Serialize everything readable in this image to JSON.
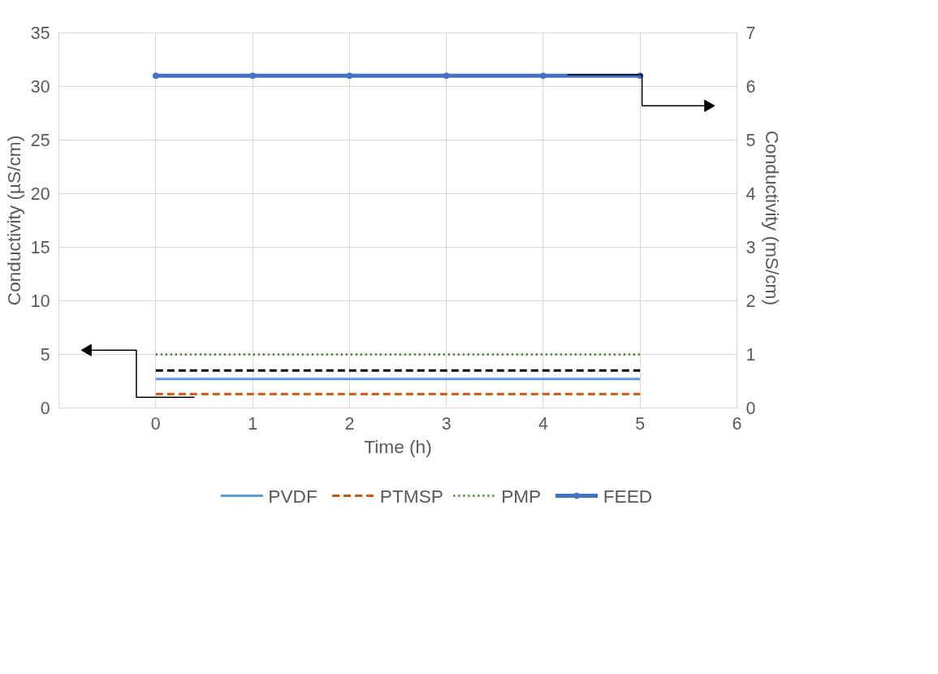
{
  "chart_data": {
    "type": "line",
    "xlabel": "Time (h)",
    "ylabel": "Conductivity (µS/cm)",
    "y2label": "Conductivity  (mS/cm)",
    "x": [
      0,
      1,
      2,
      3,
      4,
      5
    ],
    "xlim": [
      -1,
      6
    ],
    "xticks": [
      0,
      1,
      2,
      3,
      4,
      5,
      6
    ],
    "ylim": [
      0,
      35
    ],
    "yticks": [
      0,
      5,
      10,
      15,
      20,
      25,
      30,
      35
    ],
    "y2lim": [
      0,
      7
    ],
    "y2ticks": [
      0,
      1,
      2,
      3,
      4,
      5,
      6,
      7
    ],
    "grid": true,
    "legend": "bottom",
    "series": [
      {
        "name": "PVDF",
        "color": "#5b9bd5",
        "line_style": "solid",
        "values": [
          2.7,
          2.7,
          2.7,
          2.7,
          2.7,
          2.7
        ]
      },
      {
        "name": "PTMSP",
        "color": "#c55a11",
        "line_style": "dashed",
        "values": [
          1.3,
          1.3,
          1.3,
          1.3,
          1.3,
          1.3
        ]
      },
      {
        "name": "PMP",
        "color": "#548235",
        "line_style": "dotted",
        "values": [
          5,
          5,
          5,
          5,
          5,
          5
        ]
      },
      {
        "color": "#000000",
        "line_style": "dashed",
        "values": [
          3.5,
          3.5,
          3.5,
          3.5,
          3.5,
          3.5
        ]
      },
      {
        "name": "FEED",
        "color": "#4472c4",
        "line_style": "solid",
        "marker": "circle",
        "axis": "y2",
        "values": [
          6.2,
          6.2,
          6.2,
          6.2,
          6.2,
          6.2
        ]
      }
    ]
  }
}
